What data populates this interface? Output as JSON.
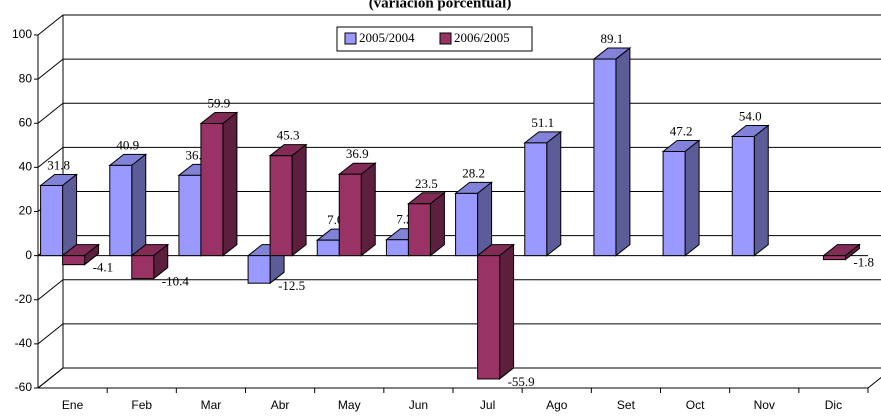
{
  "chart_data": {
    "type": "bar3d",
    "title": "(variación porcentual)",
    "categories": [
      "Ene",
      "Feb",
      "Mar",
      "Abr",
      "May",
      "Jun",
      "Jul",
      "Ago",
      "Set",
      "Oct",
      "Nov",
      "Dic"
    ],
    "series": [
      {
        "name": "2005/2004",
        "color": "#9999ff",
        "values": [
          31.8,
          40.9,
          36.4,
          -12.5,
          7.0,
          7.2,
          28.2,
          51.1,
          89.1,
          47.2,
          54.0,
          null
        ],
        "value_labels": [
          "31.8",
          "40.9",
          "36.4",
          "-12.5",
          "7.0",
          "7.2",
          "28.2",
          "51.1",
          "89.1",
          "47.2",
          "54.0",
          null
        ]
      },
      {
        "name": "2006/2005",
        "color": "#993366",
        "values": [
          -4.1,
          -10.4,
          59.9,
          45.3,
          36.9,
          23.5,
          -55.9,
          null,
          null,
          null,
          null,
          -1.8
        ],
        "value_labels": [
          "-4.1",
          "-10.4",
          "59.9",
          "45.3",
          "36.9",
          "23.5",
          "-55.9",
          null,
          null,
          null,
          null,
          "-1.8"
        ]
      }
    ],
    "ylim": [
      -60,
      100
    ],
    "yticks": [
      -60,
      -40,
      -20,
      0,
      20,
      40,
      60,
      80,
      100
    ],
    "grid": true
  }
}
